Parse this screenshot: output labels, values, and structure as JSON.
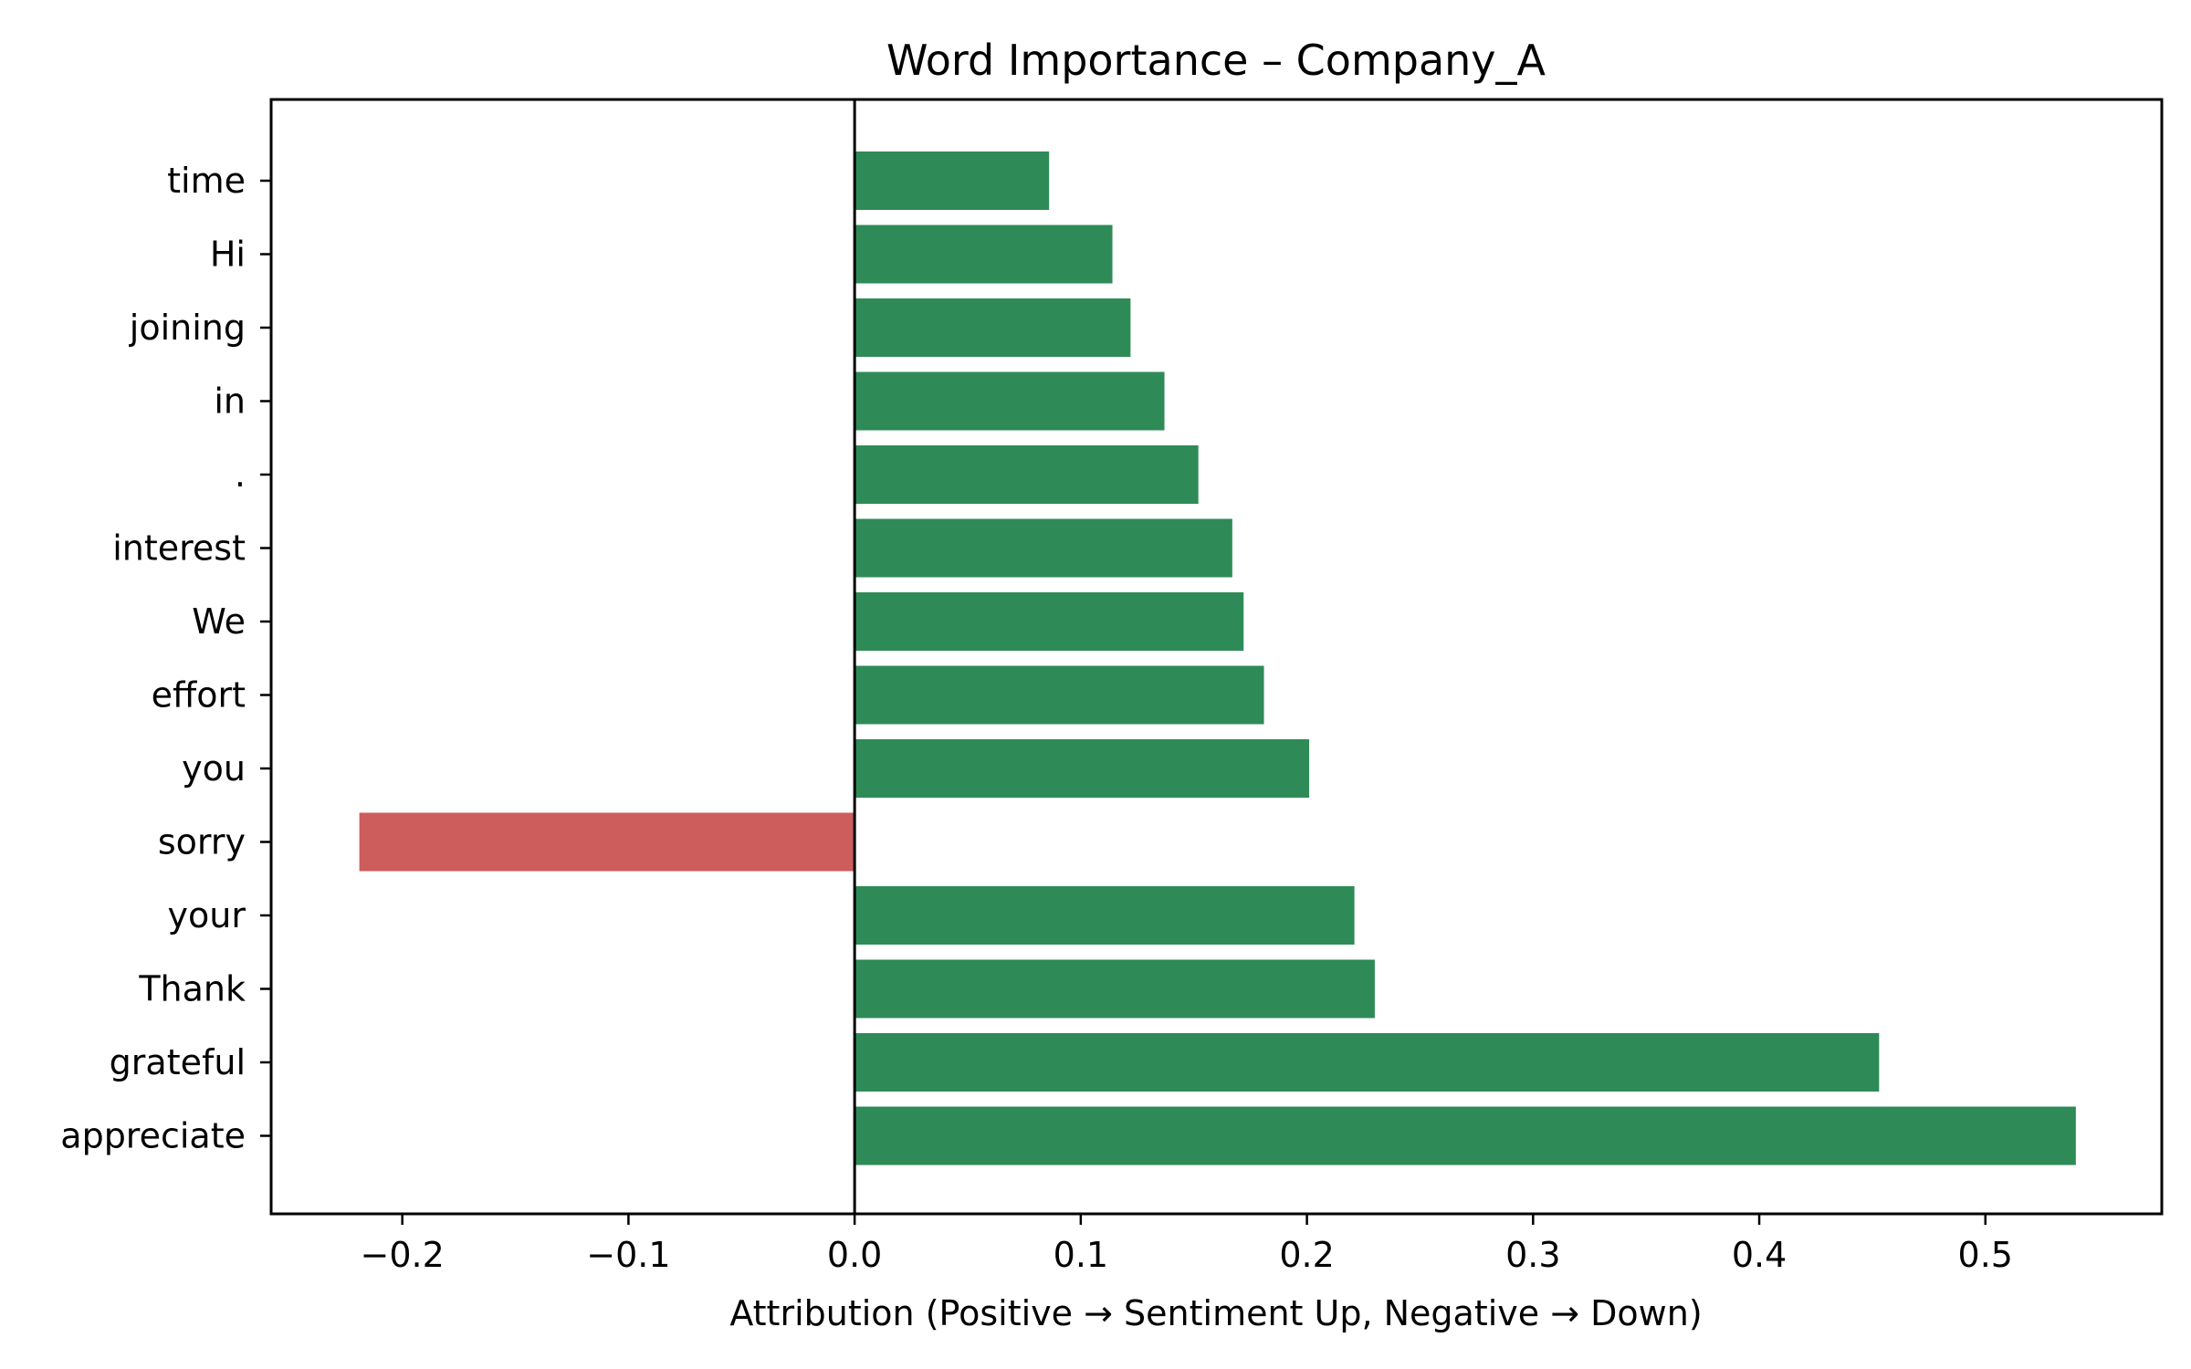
{
  "chart_data": {
    "type": "bar",
    "orientation": "horizontal",
    "title": "Word Importance – Company_A",
    "xlabel": "Attribution (Positive → Sentiment Up, Negative → Down)",
    "ylabel": "",
    "xlim": [
      -0.258,
      0.578
    ],
    "x_ticks": [
      -0.2,
      -0.1,
      0.0,
      0.1,
      0.2,
      0.3,
      0.4,
      0.5
    ],
    "x_tick_labels": [
      "−0.2",
      "−0.1",
      "0.0",
      "0.1",
      "0.2",
      "0.3",
      "0.4",
      "0.5"
    ],
    "categories": [
      "time",
      "Hi",
      "joining",
      "in",
      ".",
      "interest",
      "We",
      "effort",
      "you",
      "sorry",
      "your",
      "Thank",
      "grateful",
      "appreciate"
    ],
    "values": [
      0.086,
      0.114,
      0.122,
      0.137,
      0.152,
      0.167,
      0.172,
      0.181,
      0.201,
      -0.219,
      0.221,
      0.23,
      0.453,
      0.54
    ],
    "colors": {
      "positive": "#2e8b57",
      "negative": "#cd5c5c"
    },
    "grid": false,
    "legend": "none",
    "zero_line": true
  }
}
